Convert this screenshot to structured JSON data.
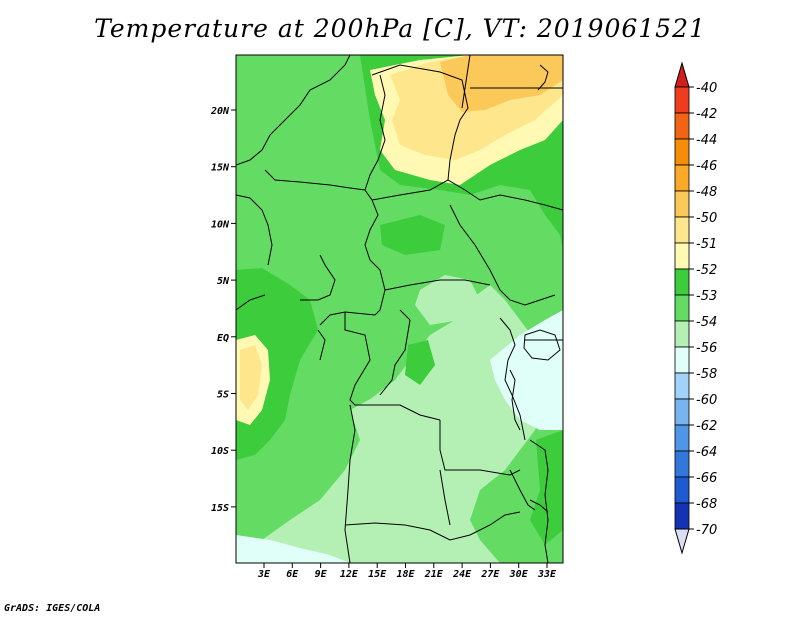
{
  "title": "Temperature at 200hPa [C], VT: 2019061521",
  "credit": "GrADS: IGES/COLA",
  "map": {
    "lat_labels": [
      "20N",
      "15N",
      "10N",
      "5N",
      "EQ",
      "5S",
      "10S",
      "15S"
    ],
    "lon_labels": [
      "3E",
      "6E",
      "9E",
      "12E",
      "15E",
      "18E",
      "21E",
      "24E",
      "27E",
      "30E",
      "33E"
    ]
  },
  "colorbar": {
    "labels": [
      "-40",
      "-42",
      "-44",
      "-46",
      "-48",
      "-50",
      "-51",
      "-52",
      "-53",
      "-54",
      "-56",
      "-58",
      "-60",
      "-62",
      "-64",
      "-66",
      "-68",
      "-70"
    ],
    "colors": [
      "#f03c1e",
      "#f06414",
      "#f58c0a",
      "#faaa28",
      "#fbc85a",
      "#fde68c",
      "#fff9b4",
      "#3ccc3c",
      "#64dc64",
      "#b4f0b4",
      "#e0fff8",
      "#a0d2fa",
      "#78b4f0",
      "#5096e6",
      "#3278dc",
      "#1e5ad2",
      "#1432b4",
      "#0a1078"
    ],
    "top_arrow_color": "#d21e1e",
    "bottom_arrow_color": "#dcdcf5"
  }
}
